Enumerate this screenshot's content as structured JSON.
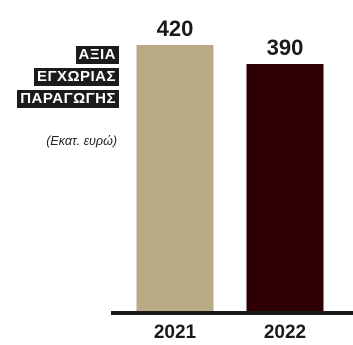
{
  "chart_data": {
    "type": "bar",
    "title_lines": [
      "ΑΞΙΑ",
      "ΕΓΧΩΡΙΑΣ",
      "ΠΑΡΑΓΩΓΗΣ"
    ],
    "unit_label": "(Εκατ. ευρώ)",
    "categories": [
      "2021",
      "2022"
    ],
    "values": [
      420,
      390
    ],
    "value_labels": [
      "420",
      "390"
    ],
    "bar_colors": [
      "#b9aa86",
      "#2e0005"
    ],
    "ylim": [
      0,
      420
    ],
    "grid": false,
    "legend": "none"
  }
}
